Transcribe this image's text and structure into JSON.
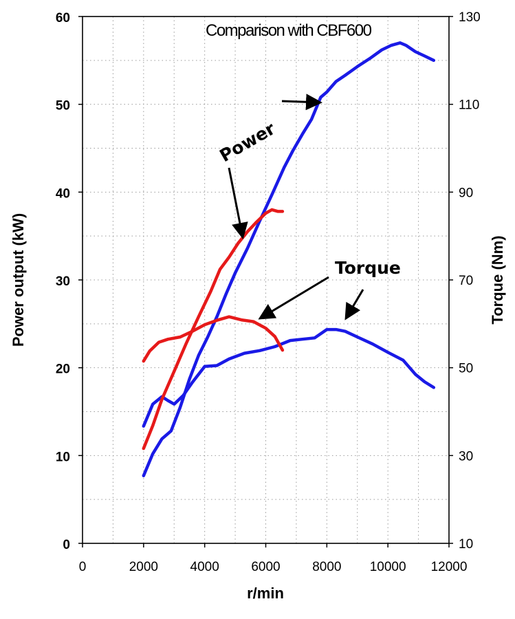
{
  "chart_data": {
    "type": "line",
    "title": "Comparison with CBF600",
    "xlabel": "r/min",
    "ylabel_left": "Power output (kW)",
    "ylabel_right": "Torque (Nm)",
    "xlim": [
      0,
      12000
    ],
    "ylim_left": [
      0,
      60
    ],
    "ylim_right": [
      10,
      130
    ],
    "x_ticks": [
      0,
      2000,
      4000,
      6000,
      8000,
      10000,
      12000
    ],
    "y_ticks_left": [
      0,
      10,
      20,
      30,
      40,
      50,
      60
    ],
    "y_ticks_right": [
      10,
      30,
      50,
      70,
      90,
      110,
      130
    ],
    "grid": "dotted",
    "annotations": [
      "Power",
      "Torque"
    ],
    "colors": {
      "blue": "#1a1ae6",
      "red": "#e61a1a"
    },
    "series": [
      {
        "color": "blue",
        "axis": "left",
        "x": [
          2000,
          2300,
          2600,
          2900,
          3200,
          3500,
          3800,
          4100,
          4400,
          4700,
          5000,
          5400,
          5800,
          6200,
          6600,
          6900,
          7200,
          7500,
          7800,
          8000,
          8300,
          8600,
          9000,
          9400,
          9800,
          10100,
          10400,
          10600,
          10900,
          11200,
          11500
        ],
        "y": [
          7.7,
          10.2,
          11.9,
          12.8,
          15.5,
          18.7,
          21.4,
          23.5,
          25.8,
          28.4,
          30.8,
          33.6,
          36.7,
          39.7,
          42.8,
          44.8,
          46.6,
          48.3,
          50.8,
          51.4,
          52.6,
          53.3,
          54.3,
          55.2,
          56.2,
          56.7,
          57.0,
          56.7,
          56.0,
          55.5,
          55.0
        ]
      },
      {
        "color": "blue",
        "axis": "right",
        "x": [
          2000,
          2300,
          2600,
          2800,
          3000,
          3300,
          3600,
          4000,
          4400,
          4800,
          5300,
          5800,
          6300,
          6800,
          7200,
          7600,
          8000,
          8300,
          8600,
          9000,
          9500,
          10000,
          10500,
          10900,
          11200,
          11500
        ],
        "y": [
          36.7,
          41.7,
          43.4,
          42.5,
          41.7,
          43.7,
          46.7,
          50.3,
          50.5,
          52.0,
          53.3,
          53.9,
          54.8,
          56.2,
          56.5,
          56.8,
          58.7,
          58.7,
          58.3,
          57.0,
          55.4,
          53.5,
          51.7,
          48.5,
          46.8,
          45.5
        ]
      },
      {
        "color": "red",
        "axis": "left",
        "x": [
          2000,
          2300,
          2600,
          3000,
          3400,
          3800,
          4200,
          4500,
          4800,
          5100,
          5400,
          5700,
          6000,
          6200,
          6400,
          6550
        ],
        "y": [
          10.8,
          13.4,
          16.4,
          19.6,
          22.8,
          25.8,
          28.7,
          31.2,
          32.6,
          34.2,
          35.5,
          36.6,
          37.6,
          38.0,
          37.8,
          37.8
        ]
      },
      {
        "color": "red",
        "axis": "right",
        "x": [
          2000,
          2200,
          2500,
          2800,
          3200,
          3600,
          4000,
          4400,
          4800,
          5200,
          5600,
          6000,
          6300,
          6550
        ],
        "y": [
          51.5,
          53.8,
          55.8,
          56.5,
          57.0,
          58.3,
          59.8,
          60.8,
          61.6,
          60.9,
          60.5,
          59.0,
          57.1,
          54.0
        ]
      }
    ]
  }
}
